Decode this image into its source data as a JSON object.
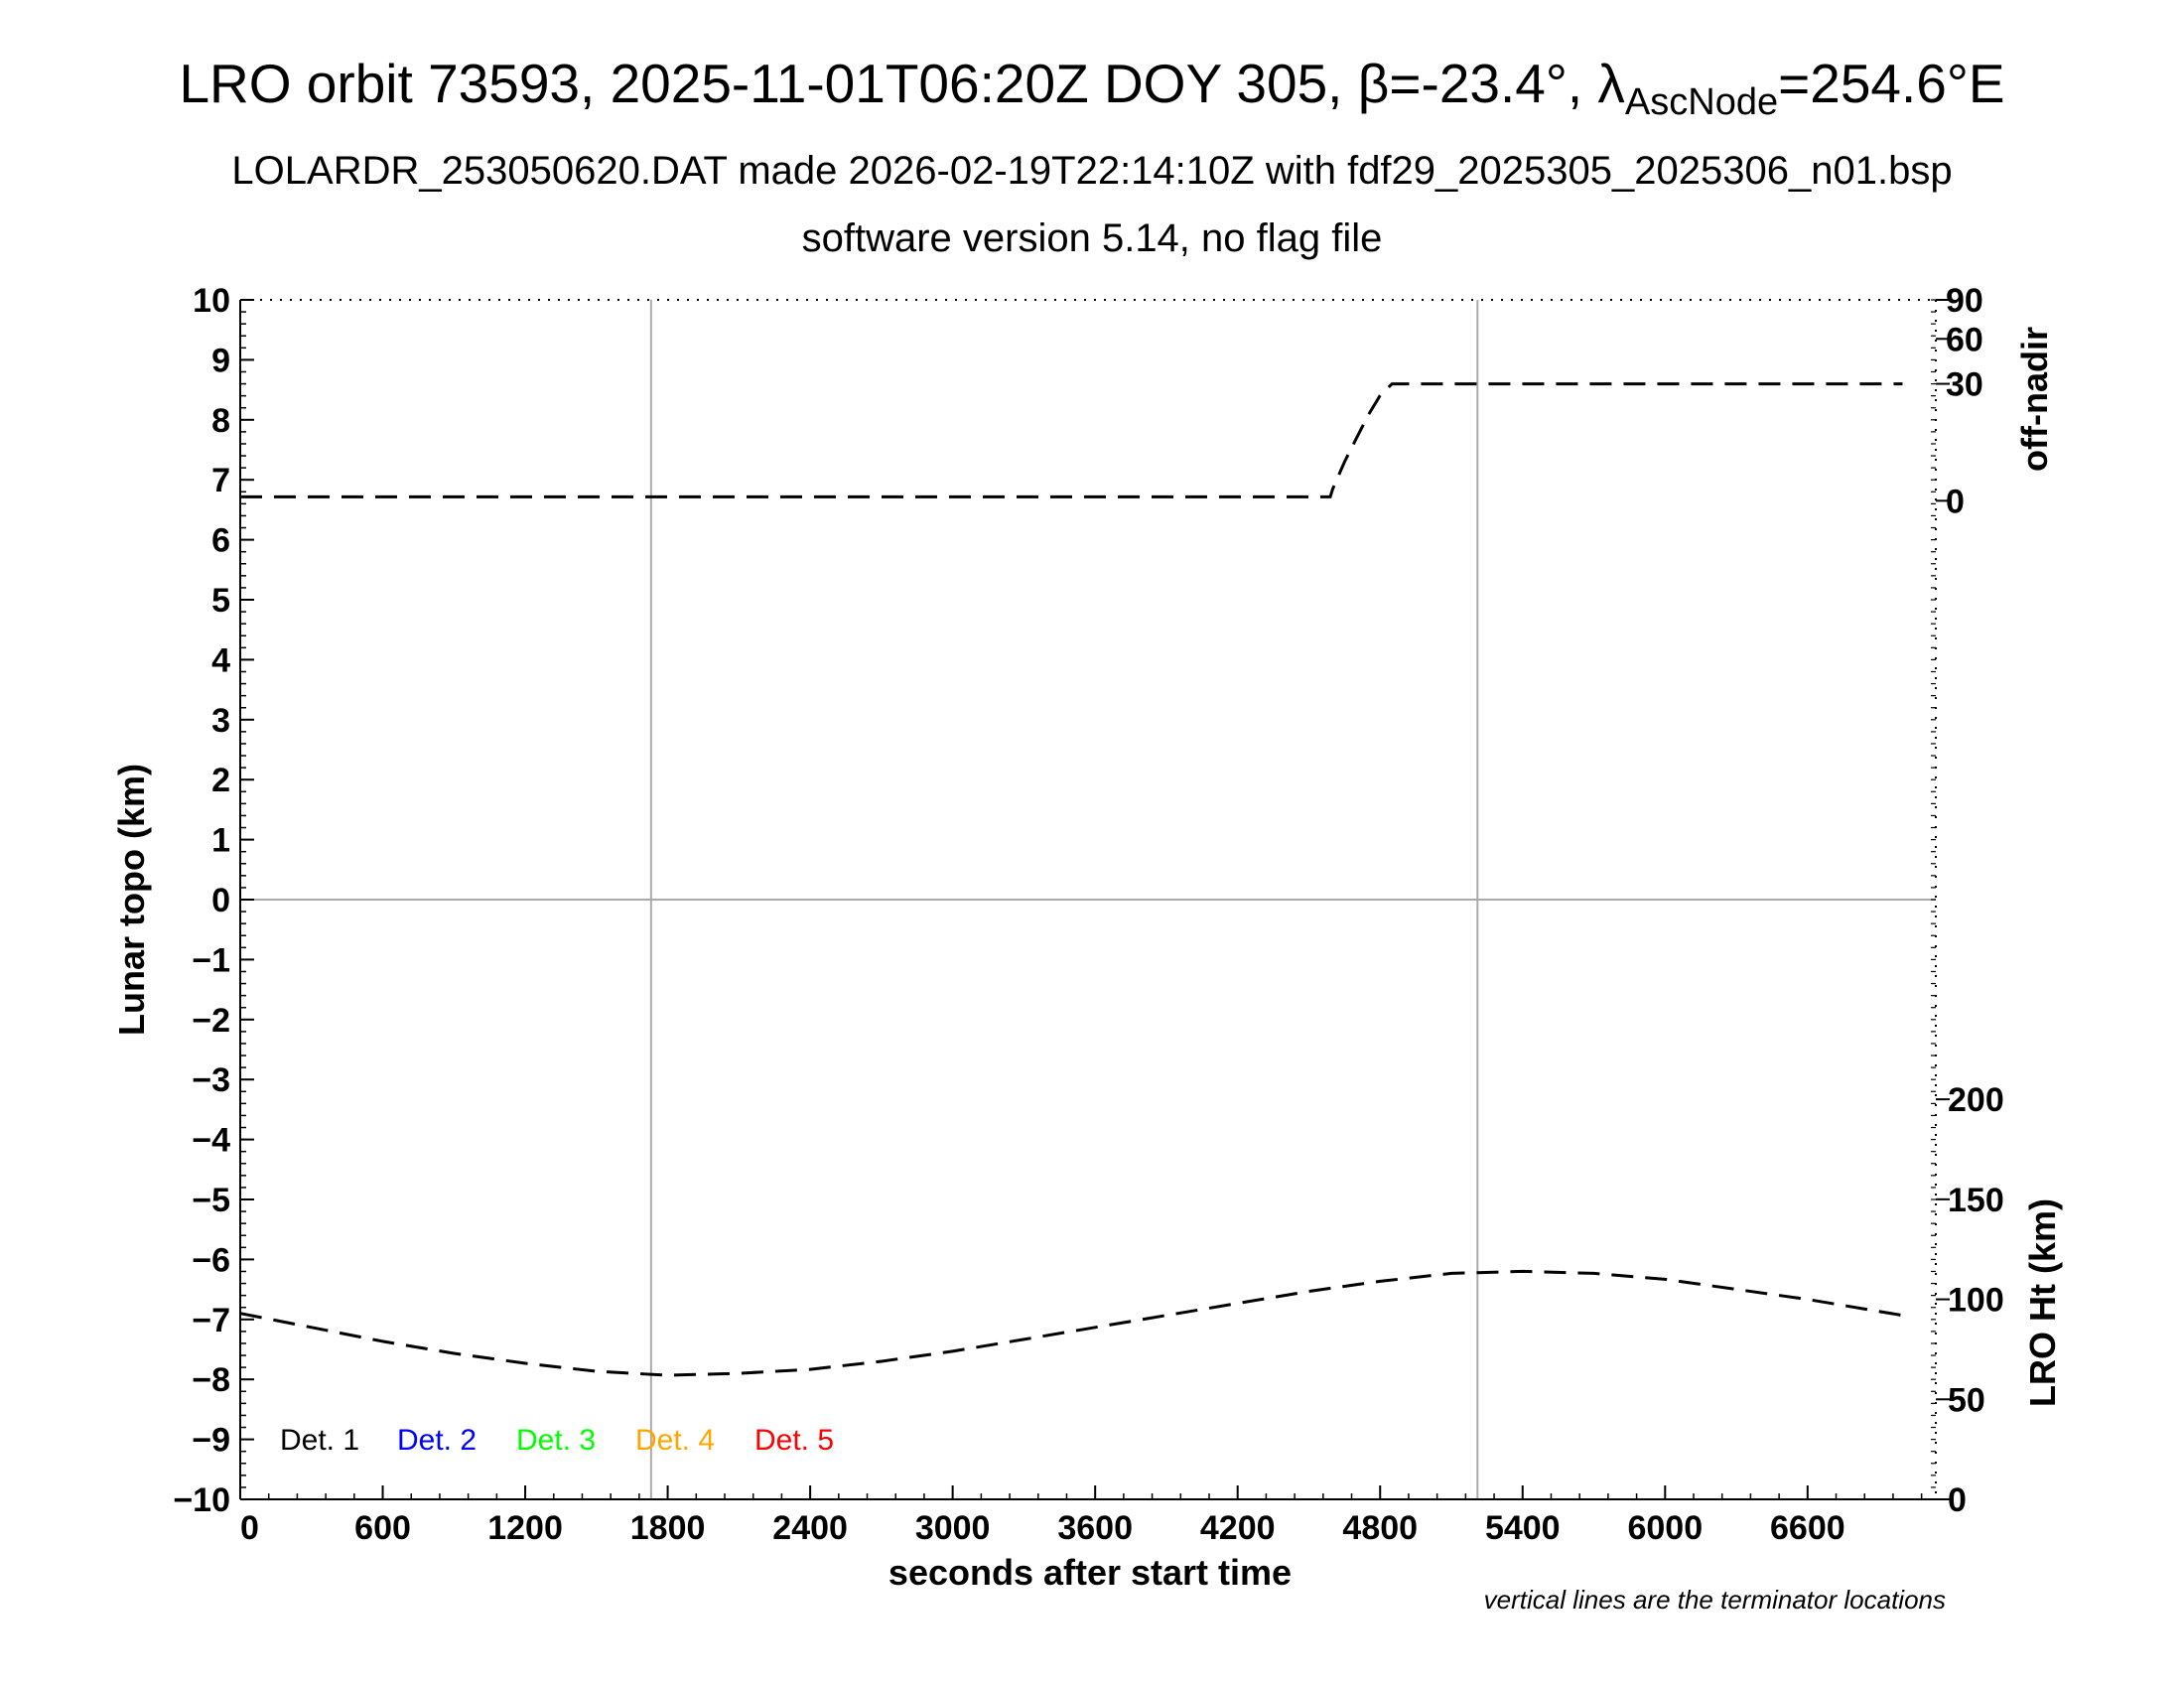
{
  "header": {
    "title_prefix": "LRO orbit 73593, 2025-11-01T06:20Z DOY 305, β=-23.4°, λ",
    "title_subscript": "AscNode",
    "title_suffix": "=254.6°E",
    "subtitle": "LOLARDR_253050620.DAT made 2026-02-19T22:14:10Z with fdf29_2025305_2025306_n01.bsp",
    "software": "software version 5.14, no flag file"
  },
  "chart_data": {
    "type": "line",
    "xlabel": "seconds after start time",
    "ylabel": "Lunar topo (km)",
    "xlim": [
      0,
      7140
    ],
    "ylim": [
      -10,
      10
    ],
    "x_ticks": [
      0,
      600,
      1200,
      1800,
      2400,
      3000,
      3600,
      4200,
      4800,
      5400,
      6000,
      6600
    ],
    "y_ticks": [
      10,
      9,
      8,
      7,
      6,
      5,
      4,
      3,
      2,
      1,
      0,
      -1,
      -2,
      -3,
      -4,
      -5,
      -6,
      -7,
      -8,
      -9,
      -10
    ],
    "y_tick_labels": [
      "10",
      "9",
      "8",
      "7",
      "6",
      "5",
      "4",
      "3",
      "2",
      "1",
      "0",
      "−1",
      "−2",
      "−3",
      "−4",
      "−5",
      "−6",
      "−7",
      "−8",
      "−9",
      "−10"
    ],
    "right_axes": [
      {
        "label": "off-nadir",
        "tick_values": [
          0,
          30,
          60,
          90
        ],
        "tick_labels": [
          "0",
          "30",
          "60",
          "90"
        ],
        "tick_y_positions_in_topo_km": [
          6.65,
          8.6,
          9.35,
          10
        ]
      },
      {
        "label": "LRO Ht (km)",
        "tick_values": [
          0,
          50,
          100,
          150,
          200
        ],
        "tick_labels": [
          "0",
          "50",
          "100",
          "150",
          "200"
        ],
        "range_km": [
          0,
          200
        ],
        "plotted_between_topo_km": [
          -10,
          -3.33
        ]
      }
    ],
    "terminator_x": [
      1730,
      5210
    ],
    "legend": [
      {
        "label": "Det. 1",
        "color": "#000000"
      },
      {
        "label": "Det. 2",
        "color": "#0000ff"
      },
      {
        "label": "Det. 3",
        "color": "#00ff00"
      },
      {
        "label": "Det. 4",
        "color": "#ffa500"
      },
      {
        "label": "Det. 5",
        "color": "#ff0000"
      }
    ],
    "series": [
      {
        "id": "off_nadir",
        "style": "dashed",
        "axis": "off-nadir",
        "x": [
          0,
          600,
          1200,
          1800,
          2400,
          3000,
          3600,
          4200,
          4590,
          4600,
          4650,
          4700,
          4750,
          4800,
          4850,
          5000,
          5400,
          6000,
          6600,
          7000
        ],
        "y": [
          1,
          1,
          1,
          1,
          1,
          1,
          1,
          1,
          1,
          3,
          10,
          16,
          22,
          27,
          30,
          30,
          30,
          30,
          30,
          30
        ]
      },
      {
        "id": "lro_height",
        "style": "dashed",
        "axis": "LRO Ht (km)",
        "x": [
          0,
          300,
          600,
          900,
          1200,
          1500,
          1800,
          2100,
          2400,
          2700,
          3000,
          3300,
          3600,
          3900,
          4200,
          4500,
          4800,
          5100,
          5400,
          5700,
          6000,
          6300,
          6600,
          6900,
          7000
        ],
        "y": [
          93,
          86,
          79,
          73,
          68,
          64,
          62,
          63,
          65,
          69,
          74,
          80,
          86,
          92,
          98,
          104,
          109,
          113,
          114,
          113,
          110,
          105,
          100,
          94,
          92
        ]
      }
    ],
    "note": "vertical lines are the terminator locations"
  }
}
